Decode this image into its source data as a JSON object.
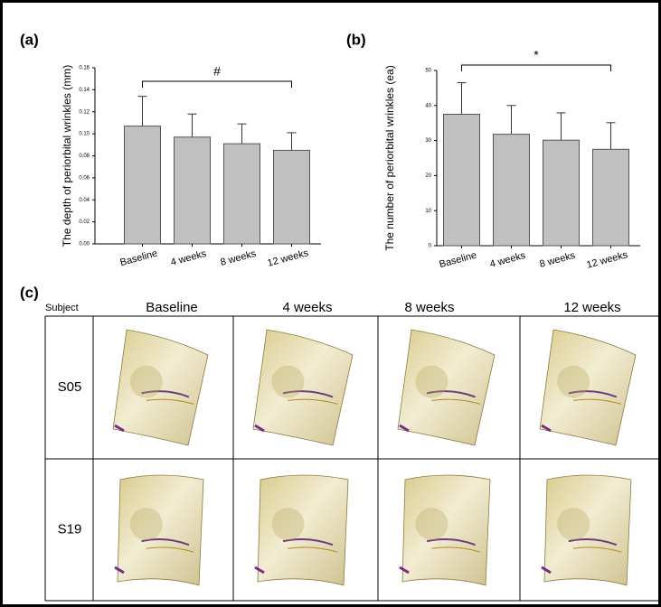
{
  "chart_data": [
    {
      "type": "bar",
      "panel_label": "(a)",
      "y_label": "The depth of periorbital wrinkles (mm)",
      "categories": [
        "Baseline",
        "4 weeks",
        "8 weeks",
        "12 weeks"
      ],
      "values": [
        0.107,
        0.097,
        0.091,
        0.085
      ],
      "errors": [
        0.027,
        0.021,
        0.018,
        0.016
      ],
      "color": "#c0c0c0",
      "annotation": "#",
      "ylim": [
        0,
        0.16
      ],
      "yticks": [
        {
          "value": 0,
          "label": "0.00"
        },
        {
          "value": 0.02,
          "label": "0.02"
        },
        {
          "value": 0.04,
          "label": "0.04"
        },
        {
          "value": 0.06,
          "label": "0.06"
        },
        {
          "value": 0.08,
          "label": "0.08"
        },
        {
          "value": 0.1,
          "label": "0.10"
        },
        {
          "value": 0.12,
          "label": "0.12"
        },
        {
          "value": 0.14,
          "label": "0.14"
        },
        {
          "value": 0.16,
          "label": "0.16"
        }
      ]
    },
    {
      "type": "bar",
      "panel_label": "(b)",
      "y_label": "The number of periorbital wrinkles (ea)",
      "categories": [
        "Baseline",
        "4 weeks",
        "8 weeks",
        "12 weeks"
      ],
      "values": [
        37.5,
        31.8,
        30.1,
        27.5
      ],
      "errors": [
        9,
        8.2,
        7.8,
        7.6
      ],
      "color": "#c0c0c0",
      "annotation": "*",
      "ylim": [
        0,
        50
      ],
      "yticks": [
        0,
        10,
        20,
        30,
        40,
        50
      ]
    }
  ],
  "table": {
    "panel_label": "(c)",
    "header": [
      "Subject",
      "Baseline",
      "4 weeks",
      "8 weeks",
      "12 weeks"
    ],
    "rows": [
      "S05",
      "S19"
    ]
  }
}
